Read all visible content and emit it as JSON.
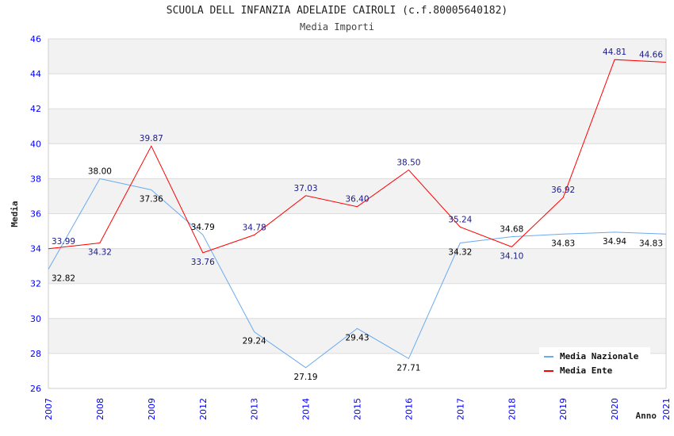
{
  "chart_data": {
    "type": "line",
    "title": "SCUOLA DELL INFANZIA ADELAIDE CAIROLI (c.f.80005640182)",
    "subtitle": "Media Importi",
    "xlabel": "Anno",
    "ylabel": "Media",
    "ylim": [
      26,
      46
    ],
    "yticks": [
      26,
      28,
      30,
      32,
      34,
      36,
      38,
      40,
      42,
      44,
      46
    ],
    "categories": [
      "2007",
      "2008",
      "2009",
      "2012",
      "2013",
      "2014",
      "2015",
      "2016",
      "2017",
      "2018",
      "2019",
      "2020",
      "2021"
    ],
    "grid": true,
    "legend_position": "top-right",
    "series": [
      {
        "name": "Media Nazionale",
        "color": "#6aaaf0",
        "label_color": "#000000",
        "values": [
          32.82,
          38.0,
          37.36,
          34.79,
          29.24,
          27.19,
          29.43,
          27.71,
          34.32,
          34.68,
          34.83,
          34.94,
          34.83
        ]
      },
      {
        "name": "Media Ente",
        "color": "#ff0000",
        "label_color": "#1a1a8c",
        "values": [
          33.99,
          34.32,
          39.87,
          33.76,
          34.78,
          37.03,
          36.4,
          38.5,
          35.24,
          34.1,
          36.92,
          44.81,
          44.66
        ]
      }
    ]
  }
}
